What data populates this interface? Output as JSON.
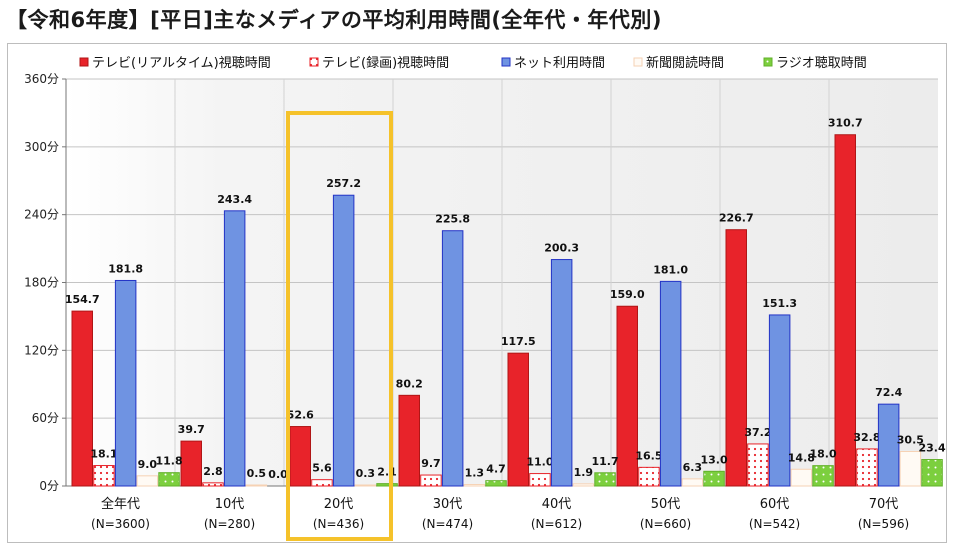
{
  "title": "【令和6年度】[平日]主なメディアの平均利用時間(全年代・年代別)",
  "chart_data": {
    "type": "bar",
    "y_unit": "分",
    "ylim": [
      0,
      360
    ],
    "yticks": [
      0,
      60,
      120,
      180,
      240,
      300,
      360
    ],
    "ytick_labels": [
      "0分",
      "60分",
      "120分",
      "180分",
      "240分",
      "300分",
      "360分"
    ],
    "grid": true,
    "legend_position": "top",
    "categories": [
      "全年代",
      "10代",
      "20代",
      "30代",
      "40代",
      "50代",
      "60代",
      "70代"
    ],
    "sample_sizes": [
      "(N=3600)",
      "(N=280)",
      "(N=436)",
      "(N=474)",
      "(N=612)",
      "(N=660)",
      "(N=542)",
      "(N=596)"
    ],
    "highlighted_category": "20代",
    "highlight_color": "#f5c22a",
    "series": [
      {
        "name": "テレビ(リアルタイム)視聴時間",
        "color": "#e8232a",
        "values": [
          154.7,
          39.7,
          52.6,
          80.2,
          117.5,
          159.0,
          226.7,
          310.7
        ]
      },
      {
        "name": "テレビ(録画)視聴時間",
        "color": "#ff9a9a",
        "values": [
          18.1,
          2.8,
          5.6,
          9.7,
          11.0,
          16.5,
          37.2,
          32.8
        ]
      },
      {
        "name": "ネット利用時間",
        "color": "#6f93e2",
        "values": [
          181.8,
          243.4,
          257.2,
          225.8,
          200.3,
          181.0,
          151.3,
          72.4
        ]
      },
      {
        "name": "新聞閲読時間",
        "color": "#f6d2b4",
        "values": [
          9.0,
          0.5,
          0.3,
          1.3,
          1.9,
          6.3,
          14.8,
          30.5
        ]
      },
      {
        "name": "ラジオ聴取時間",
        "color": "#7ccf3e",
        "values": [
          11.8,
          0.0,
          2.1,
          4.7,
          11.7,
          13.0,
          18.0,
          23.4
        ]
      }
    ],
    "value_labels": [
      [
        "154.7",
        "39.7",
        "52.6",
        "80.2",
        "117.5",
        "159.0",
        "226.7",
        "310.7"
      ],
      [
        "18.1",
        "2.8",
        "5.6",
        "9.7",
        "11.0",
        "16.5",
        "37.2",
        "32.8"
      ],
      [
        "181.8",
        "243.4",
        "257.2",
        "225.8",
        "200.3",
        "181.0",
        "151.3",
        "72.4"
      ],
      [
        "9.0",
        "0.5",
        "0.3",
        "1.3",
        "1.9",
        "6.3",
        "14.8",
        "30.5"
      ],
      [
        "11.8",
        "0.0",
        "2.1",
        "4.7",
        "11.7",
        "13.0",
        "18.0",
        "23.4"
      ]
    ]
  }
}
